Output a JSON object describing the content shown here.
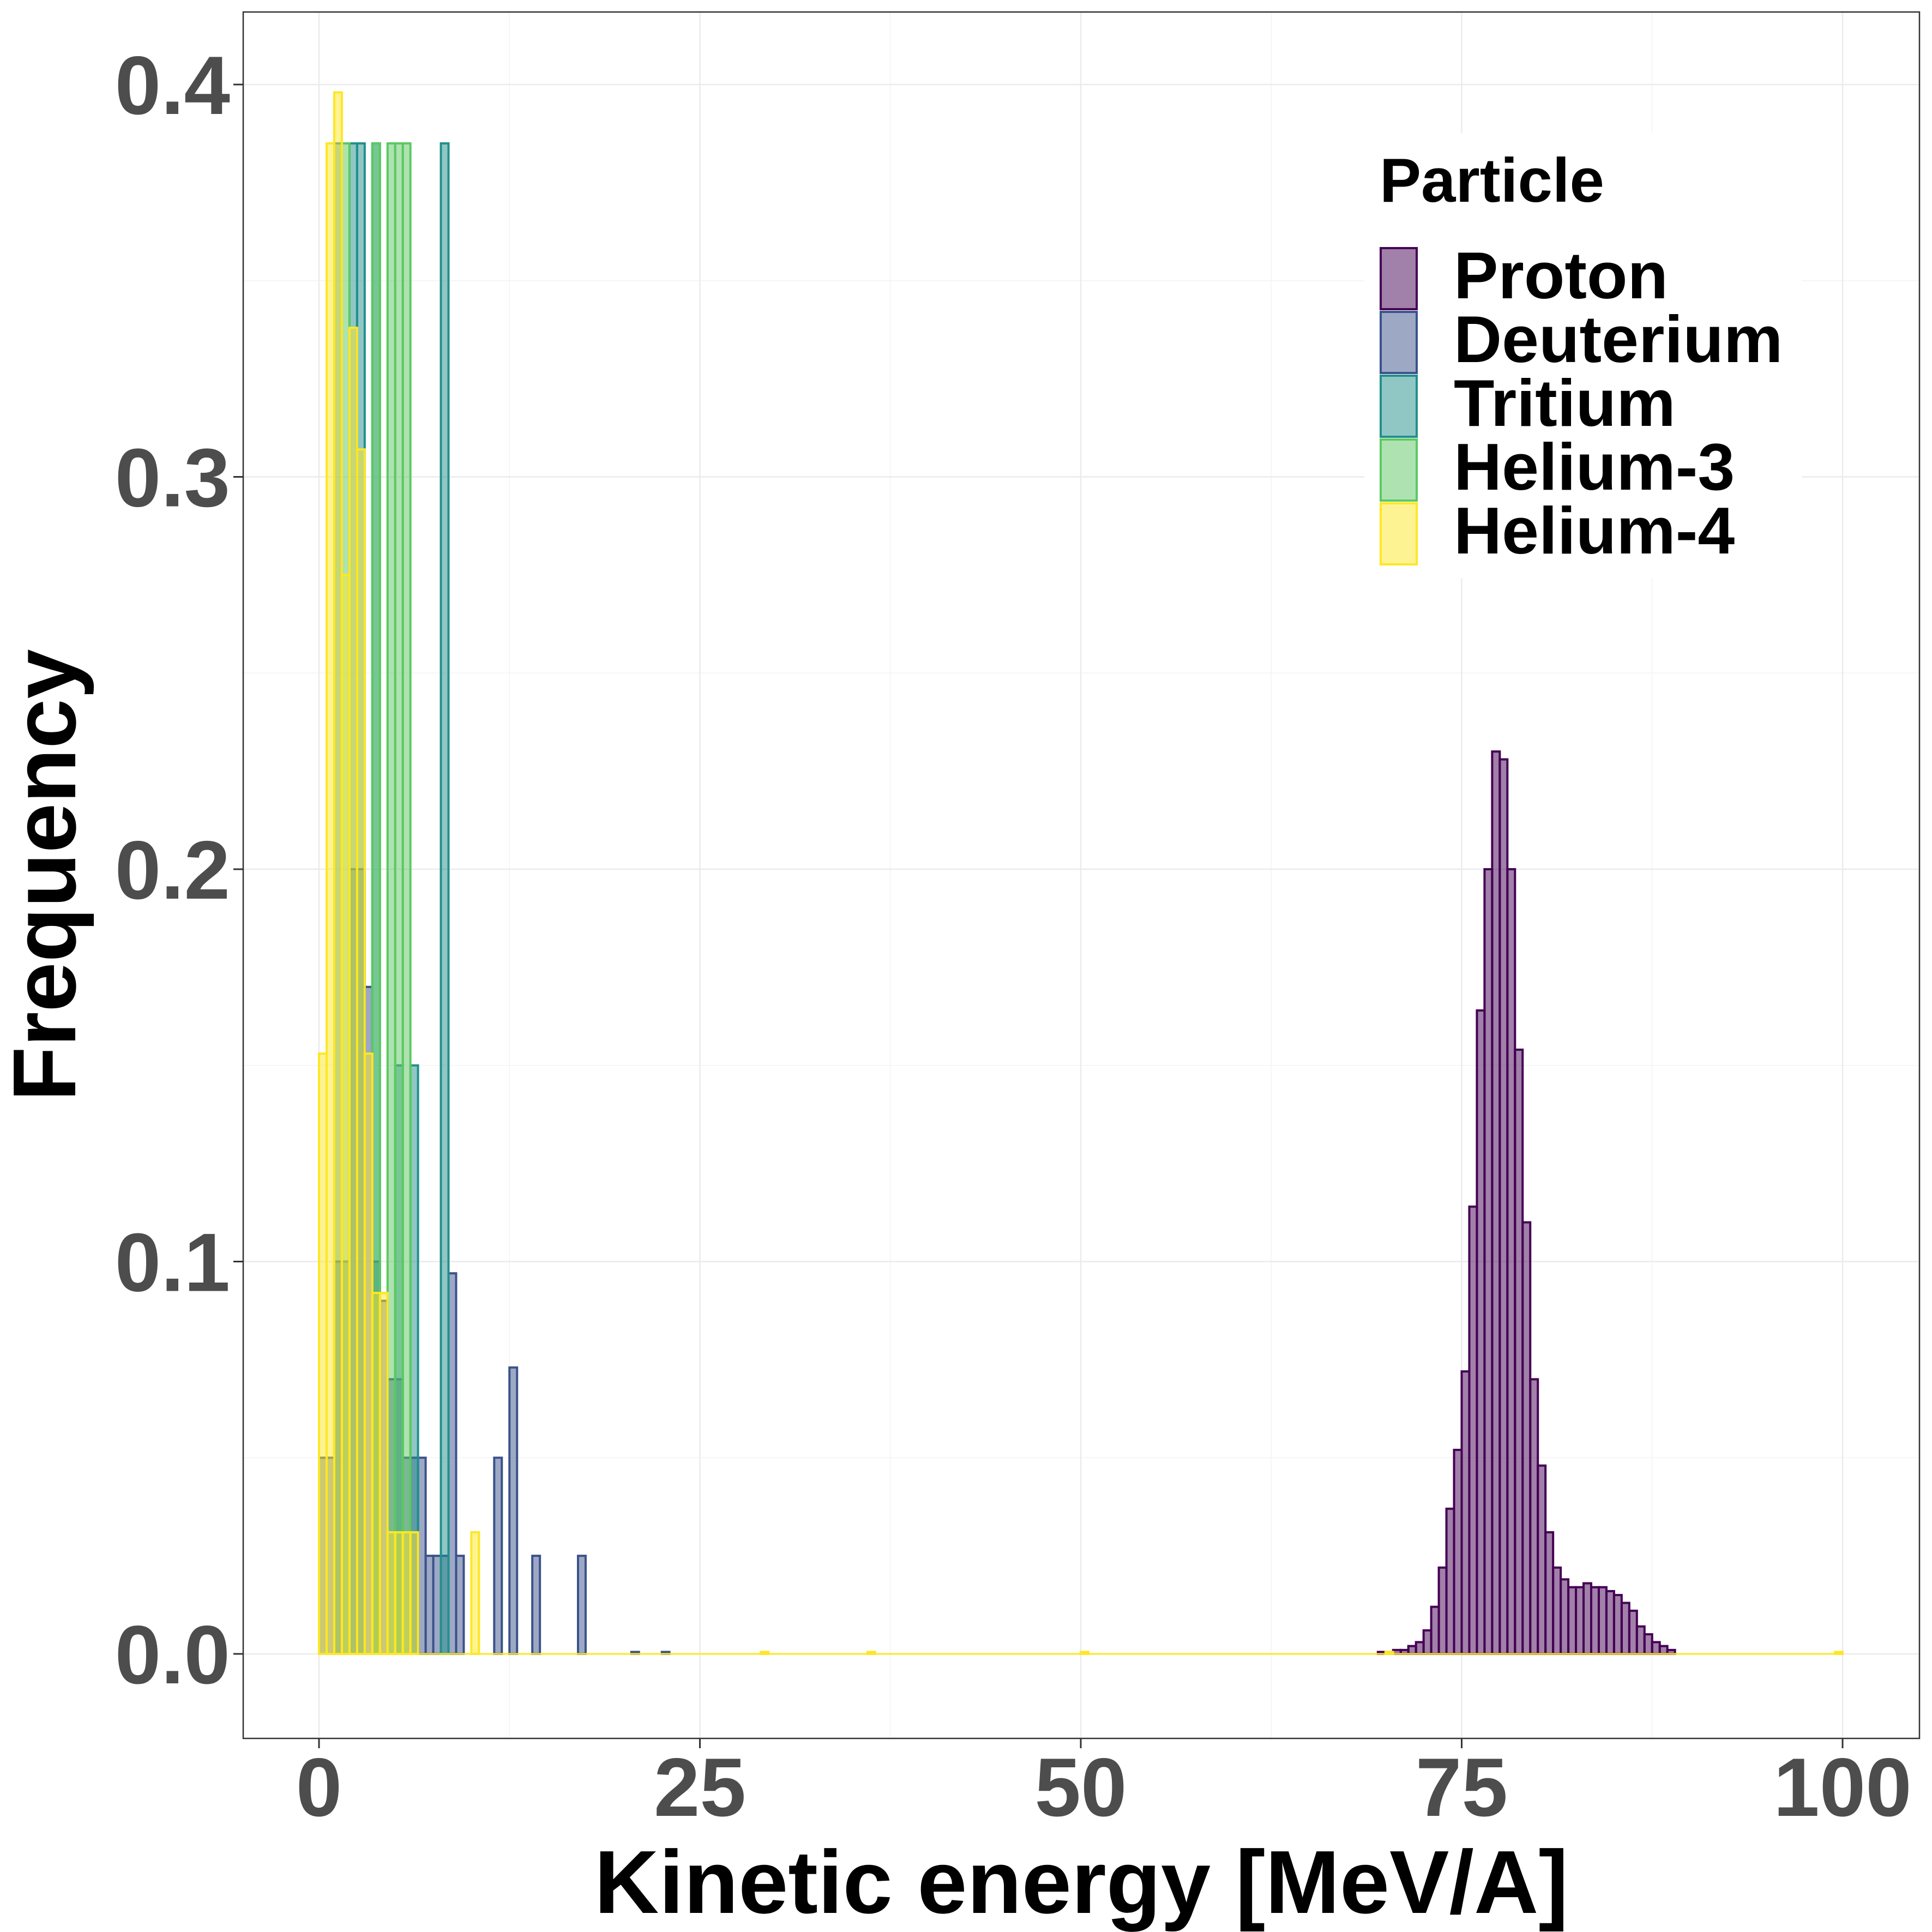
{
  "chart_data": {
    "type": "histogram",
    "xlabel": "Kinetic energy [MeV/A]",
    "ylabel": "Frequency",
    "xlim": [
      -5,
      101.5
    ],
    "ylim": [
      -0.02,
      0.42
    ],
    "x_ticks": [
      0,
      25,
      50,
      75,
      100
    ],
    "x_tick_labels": [
      "0",
      "25",
      "50",
      "75",
      "100"
    ],
    "y_ticks": [
      0.0,
      0.1,
      0.2,
      0.3,
      0.4
    ],
    "y_tick_labels": [
      "0.0",
      "0.1",
      "0.2",
      "0.3",
      "0.4"
    ],
    "grid": true,
    "legend_position": "top-right",
    "legend_title": "Particle",
    "series": [
      {
        "name": "Proton",
        "fill": "#440154",
        "stroke": "#440154",
        "bin_width": 0.5,
        "bins": [
          [
            69.5,
            0.0005
          ],
          [
            70,
            0.0005
          ],
          [
            70.5,
            0.001
          ],
          [
            71,
            0.001
          ],
          [
            71.5,
            0.002
          ],
          [
            72,
            0.003
          ],
          [
            72.5,
            0.006
          ],
          [
            73,
            0.012
          ],
          [
            73.5,
            0.022
          ],
          [
            74,
            0.037
          ],
          [
            74.5,
            0.052
          ],
          [
            75,
            0.072
          ],
          [
            75.5,
            0.114
          ],
          [
            76,
            0.164
          ],
          [
            76.5,
            0.2
          ],
          [
            77,
            0.23
          ],
          [
            77.5,
            0.228
          ],
          [
            78,
            0.2
          ],
          [
            78.5,
            0.154
          ],
          [
            79,
            0.11
          ],
          [
            79.5,
            0.07
          ],
          [
            80,
            0.048
          ],
          [
            80.5,
            0.031
          ],
          [
            81,
            0.022
          ],
          [
            81.5,
            0.019
          ],
          [
            82,
            0.017
          ],
          [
            82.5,
            0.017
          ],
          [
            83,
            0.018
          ],
          [
            83.5,
            0.017
          ],
          [
            84,
            0.017
          ],
          [
            84.5,
            0.016
          ],
          [
            85,
            0.015
          ],
          [
            85.5,
            0.013
          ],
          [
            86,
            0.011
          ],
          [
            86.5,
            0.007
          ],
          [
            87,
            0.005
          ],
          [
            87.5,
            0.003
          ],
          [
            88,
            0.002
          ],
          [
            88.5,
            0.001
          ]
        ]
      },
      {
        "name": "Deuterium",
        "fill": "#3b528b",
        "stroke": "#3b528b",
        "bin_width": 0.5,
        "bins": [
          [
            0,
            0.05
          ],
          [
            0.5,
            0.05
          ],
          [
            1,
            0.1
          ],
          [
            1.5,
            0.1
          ],
          [
            2,
            0.2
          ],
          [
            2.5,
            0.2
          ],
          [
            3,
            0.17
          ],
          [
            3.5,
            0.1
          ],
          [
            4,
            0.09
          ],
          [
            4.5,
            0.07
          ],
          [
            5,
            0.07
          ],
          [
            5.5,
            0.05
          ],
          [
            6,
            0.05
          ],
          [
            6.5,
            0.05
          ],
          [
            7,
            0.025
          ],
          [
            7.5,
            0.025
          ],
          [
            8,
            0.025
          ],
          [
            8.5,
            0.097
          ],
          [
            9,
            0.025
          ],
          [
            11.5,
            0.05
          ],
          [
            12.5,
            0.073
          ],
          [
            14,
            0.025
          ],
          [
            17,
            0.025
          ],
          [
            20.5,
            0.0005
          ],
          [
            22.5,
            0.0005
          ]
        ]
      },
      {
        "name": "Tritium",
        "fill": "#21908c",
        "stroke": "#21908c",
        "bin_width": 0.5,
        "bins": [
          [
            1,
            0.385
          ],
          [
            2,
            0.385
          ],
          [
            2.5,
            0.385
          ],
          [
            3.5,
            0.385
          ],
          [
            5,
            0.15
          ],
          [
            6,
            0.15
          ],
          [
            8,
            0.385
          ]
        ]
      },
      {
        "name": "Helium-3",
        "fill": "#5dc863",
        "stroke": "#5dc863",
        "bin_width": 0.5,
        "bins": [
          [
            1.5,
            0.385
          ],
          [
            3.5,
            0.385
          ],
          [
            4.5,
            0.385
          ],
          [
            5,
            0.385
          ],
          [
            5.5,
            0.385
          ]
        ]
      },
      {
        "name": "Helium-4",
        "fill": "#fde725",
        "stroke": "#fde725",
        "bin_width": 0.5,
        "bins": [
          [
            0,
            0.153
          ],
          [
            0.5,
            0.385
          ],
          [
            1,
            0.398
          ],
          [
            1.5,
            0.275
          ],
          [
            2,
            0.338
          ],
          [
            2.5,
            0.307
          ],
          [
            3,
            0.153
          ],
          [
            3.5,
            0.092
          ],
          [
            4,
            0.092
          ],
          [
            4.5,
            0.031
          ],
          [
            5,
            0.031
          ],
          [
            5.5,
            0.031
          ],
          [
            6,
            0.031
          ],
          [
            10,
            0.031
          ],
          [
            29,
            0.0005
          ],
          [
            36,
            0.0005
          ],
          [
            50,
            0.0005
          ],
          [
            70,
            0.0005
          ],
          [
            99.5,
            0.0005
          ]
        ]
      }
    ]
  }
}
